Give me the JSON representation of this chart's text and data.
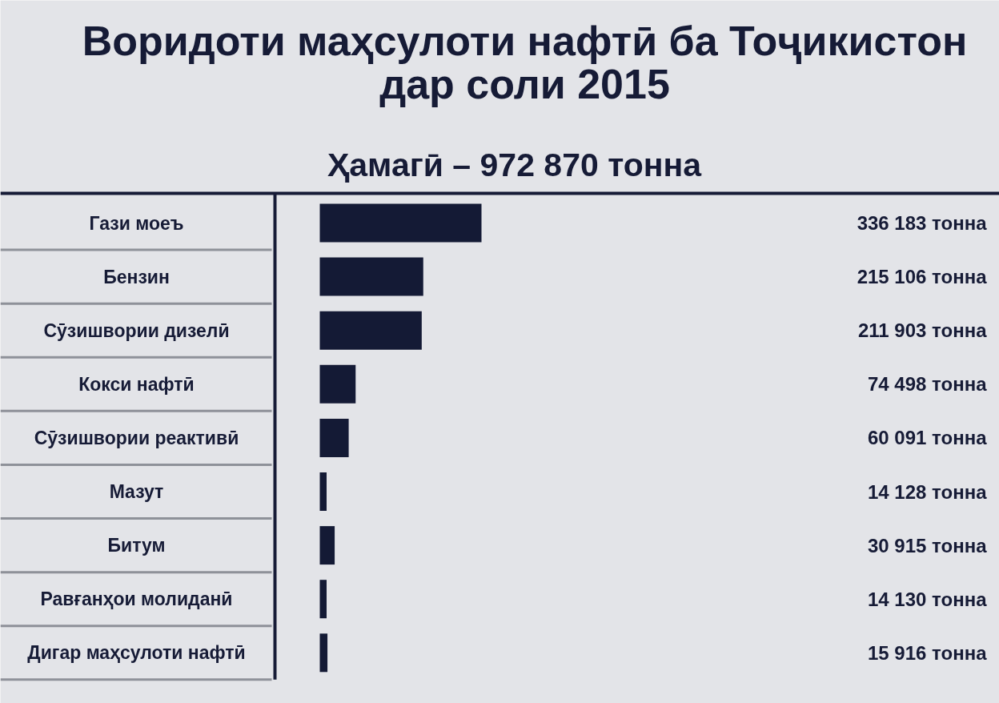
{
  "chart_data": {
    "type": "bar",
    "orientation": "horizontal",
    "title": "Воридоти маҳсулоти нафтӣ ба Тоҷикистон дар соли 2015",
    "subtitle": "Ҳамагӣ – 972 870 тонна",
    "categories": [
      "Гази моеъ",
      "Бензин",
      "Сӯзишвории дизелӣ",
      "Кокси нафтӣ",
      "Сӯзишвории реактивӣ",
      "Мазут",
      "Битум",
      "Равғанҳои молиданӣ",
      "Дигар маҳсулоти нафтӣ"
    ],
    "values": [
      336183,
      215106,
      211903,
      74498,
      60091,
      14128,
      30915,
      14130,
      15916
    ],
    "value_labels": [
      "336 183 тонна",
      "215 106 тонна",
      "211 903 тонна",
      "74 498 тонна",
      "60 091 тонна",
      "14 128 тонна",
      "30 915 тонна",
      "14 130 тонна",
      "15 916 тонна"
    ],
    "color": "#141a35",
    "tick_labels": "y"
  }
}
